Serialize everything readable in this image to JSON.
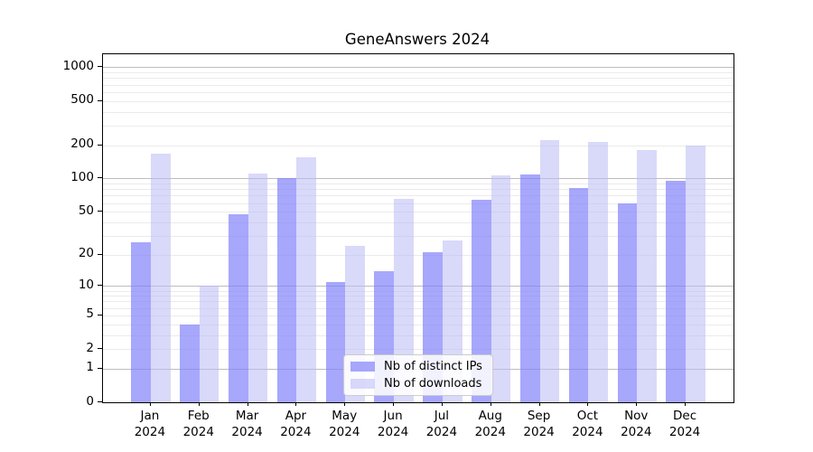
{
  "chart_data": {
    "type": "bar",
    "title": "GeneAnswers 2024",
    "categories": [
      "Jan 2024",
      "Feb 2024",
      "Mar 2024",
      "Apr 2024",
      "May 2024",
      "Jun 2024",
      "Jul 2024",
      "Aug 2024",
      "Sep 2024",
      "Oct 2024",
      "Nov 2024",
      "Dec 2024"
    ],
    "series": [
      {
        "name": "Nb of distinct IPs",
        "color": "#7d7dfa",
        "fill_alpha": 0.68,
        "values": [
          26,
          4,
          47,
          100,
          11,
          14,
          21,
          64,
          108,
          82,
          60,
          95
        ]
      },
      {
        "name": "Nb of downloads",
        "color": "#b9b9f5",
        "fill_alpha": 0.55,
        "values": [
          168,
          10,
          110,
          155,
          24,
          65,
          27,
          107,
          222,
          212,
          181,
          200
        ]
      }
    ],
    "yscale": "log1p",
    "yticks": [
      0,
      1,
      2,
      5,
      10,
      20,
      50,
      100,
      200,
      500,
      1000
    ],
    "ylim": [
      0,
      1300
    ],
    "xlabel": "",
    "ylabel": "",
    "grid": "both",
    "legend_position": "bottom-center"
  }
}
